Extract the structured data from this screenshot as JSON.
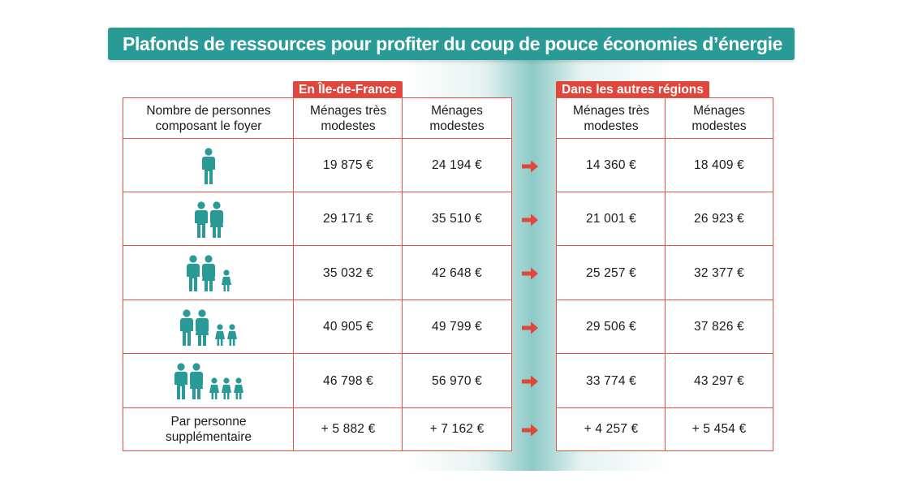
{
  "title": "Plafonds de ressources pour profiter du coup de pouce économies d’énergie",
  "regions": {
    "idf": "En Île-de-France",
    "autres": "Dans les autres régions"
  },
  "headers": {
    "first": "Nombre de personnes composant le foyer",
    "tres_modestes": "Ménages très modestes",
    "modestes": "Ménages modestes"
  },
  "rows": [
    {
      "adults": 1,
      "children": 0,
      "idf_tm": "19 875 €",
      "idf_m": "24 194 €",
      "ar_tm": "14 360 €",
      "ar_m": "18 409 €"
    },
    {
      "adults": 2,
      "children": 0,
      "idf_tm": "29 171 €",
      "idf_m": "35 510 €",
      "ar_tm": "21 001 €",
      "ar_m": "26 923 €"
    },
    {
      "adults": 2,
      "children": 1,
      "idf_tm": "35 032 €",
      "idf_m": "42 648 €",
      "ar_tm": "25 257 €",
      "ar_m": "32 377 €"
    },
    {
      "adults": 2,
      "children": 2,
      "idf_tm": "40 905 €",
      "idf_m": "49 799 €",
      "ar_tm": "29 506 €",
      "ar_m": "37 826 €"
    },
    {
      "adults": 2,
      "children": 3,
      "idf_tm": "46 798 €",
      "idf_m": "56 970 €",
      "ar_tm": "33 774 €",
      "ar_m": "43 297 €"
    }
  ],
  "extra_row": {
    "label": "Par personne supplémentaire",
    "idf_tm": "+ 5 882 €",
    "idf_m": "+ 7 162 €",
    "ar_tm": "+ 4 257 €",
    "ar_m": "+ 5 454 €"
  },
  "colors": {
    "teal": "#2a9a96",
    "red": "#e0463b"
  },
  "icons": {
    "adult": "person-icon",
    "child": "child-icon",
    "arrow": "arrow-right-icon"
  }
}
